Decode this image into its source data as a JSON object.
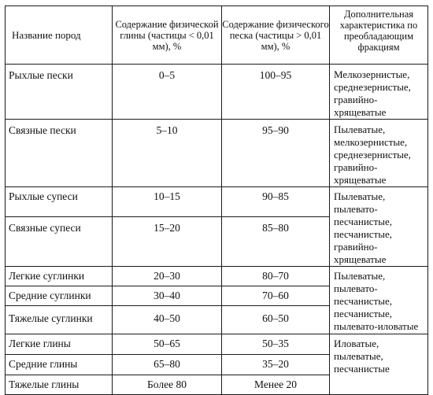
{
  "headers": {
    "col1": "Название пород",
    "col2": "Содержание физической глины (частицы < 0,01 мм), %",
    "col3": "Содержание физического песка (частицы > 0,01 мм), %",
    "col4": "Дополнительная характеристика по преобладающим фракциям"
  },
  "rows": [
    {
      "name": "Рыхлые пески",
      "clay": "0–5",
      "sand": "100–95"
    },
    {
      "name": "Связные пески",
      "clay": "5–10",
      "sand": "95–90"
    },
    {
      "name": "Рыхлые супеси",
      "clay": "10–15",
      "sand": "90–85"
    },
    {
      "name": "Связные супеси",
      "clay": "15–20",
      "sand": "85–80"
    },
    {
      "name": "Легкие суглинки",
      "clay": "20–30",
      "sand": "80–70"
    },
    {
      "name": "Средние суглинки",
      "clay": "30–40",
      "sand": "70–60"
    },
    {
      "name": "Тяжелые суглинки",
      "clay": "40–50",
      "sand": "60–50"
    },
    {
      "name": "Легкие глины",
      "clay": "50–65",
      "sand": "50–35"
    },
    {
      "name": "Средние глины",
      "clay": "65–80",
      "sand": "35–20"
    },
    {
      "name": "Тяжелые глины",
      "clay": "Более 80",
      "sand": "Менее 20"
    }
  ],
  "descriptions": {
    "loose_sands": "Мелкозернистые, среднезернистые, гравийно-хрящеватые",
    "cohesive_sands": "Пылеватые, мелкозернистые, среднезернистые, гравийно-хрящеватые",
    "sandy_loams": "Пылеватые, пылевато-песчанистые, песчанистые, гравийно-хрящеватые",
    "loams": "Пылеватые, пылевато-песчанистые, песчанистые, пылевато-иловатые",
    "clays": "Иловатые, пылеватые, песчанистые"
  }
}
